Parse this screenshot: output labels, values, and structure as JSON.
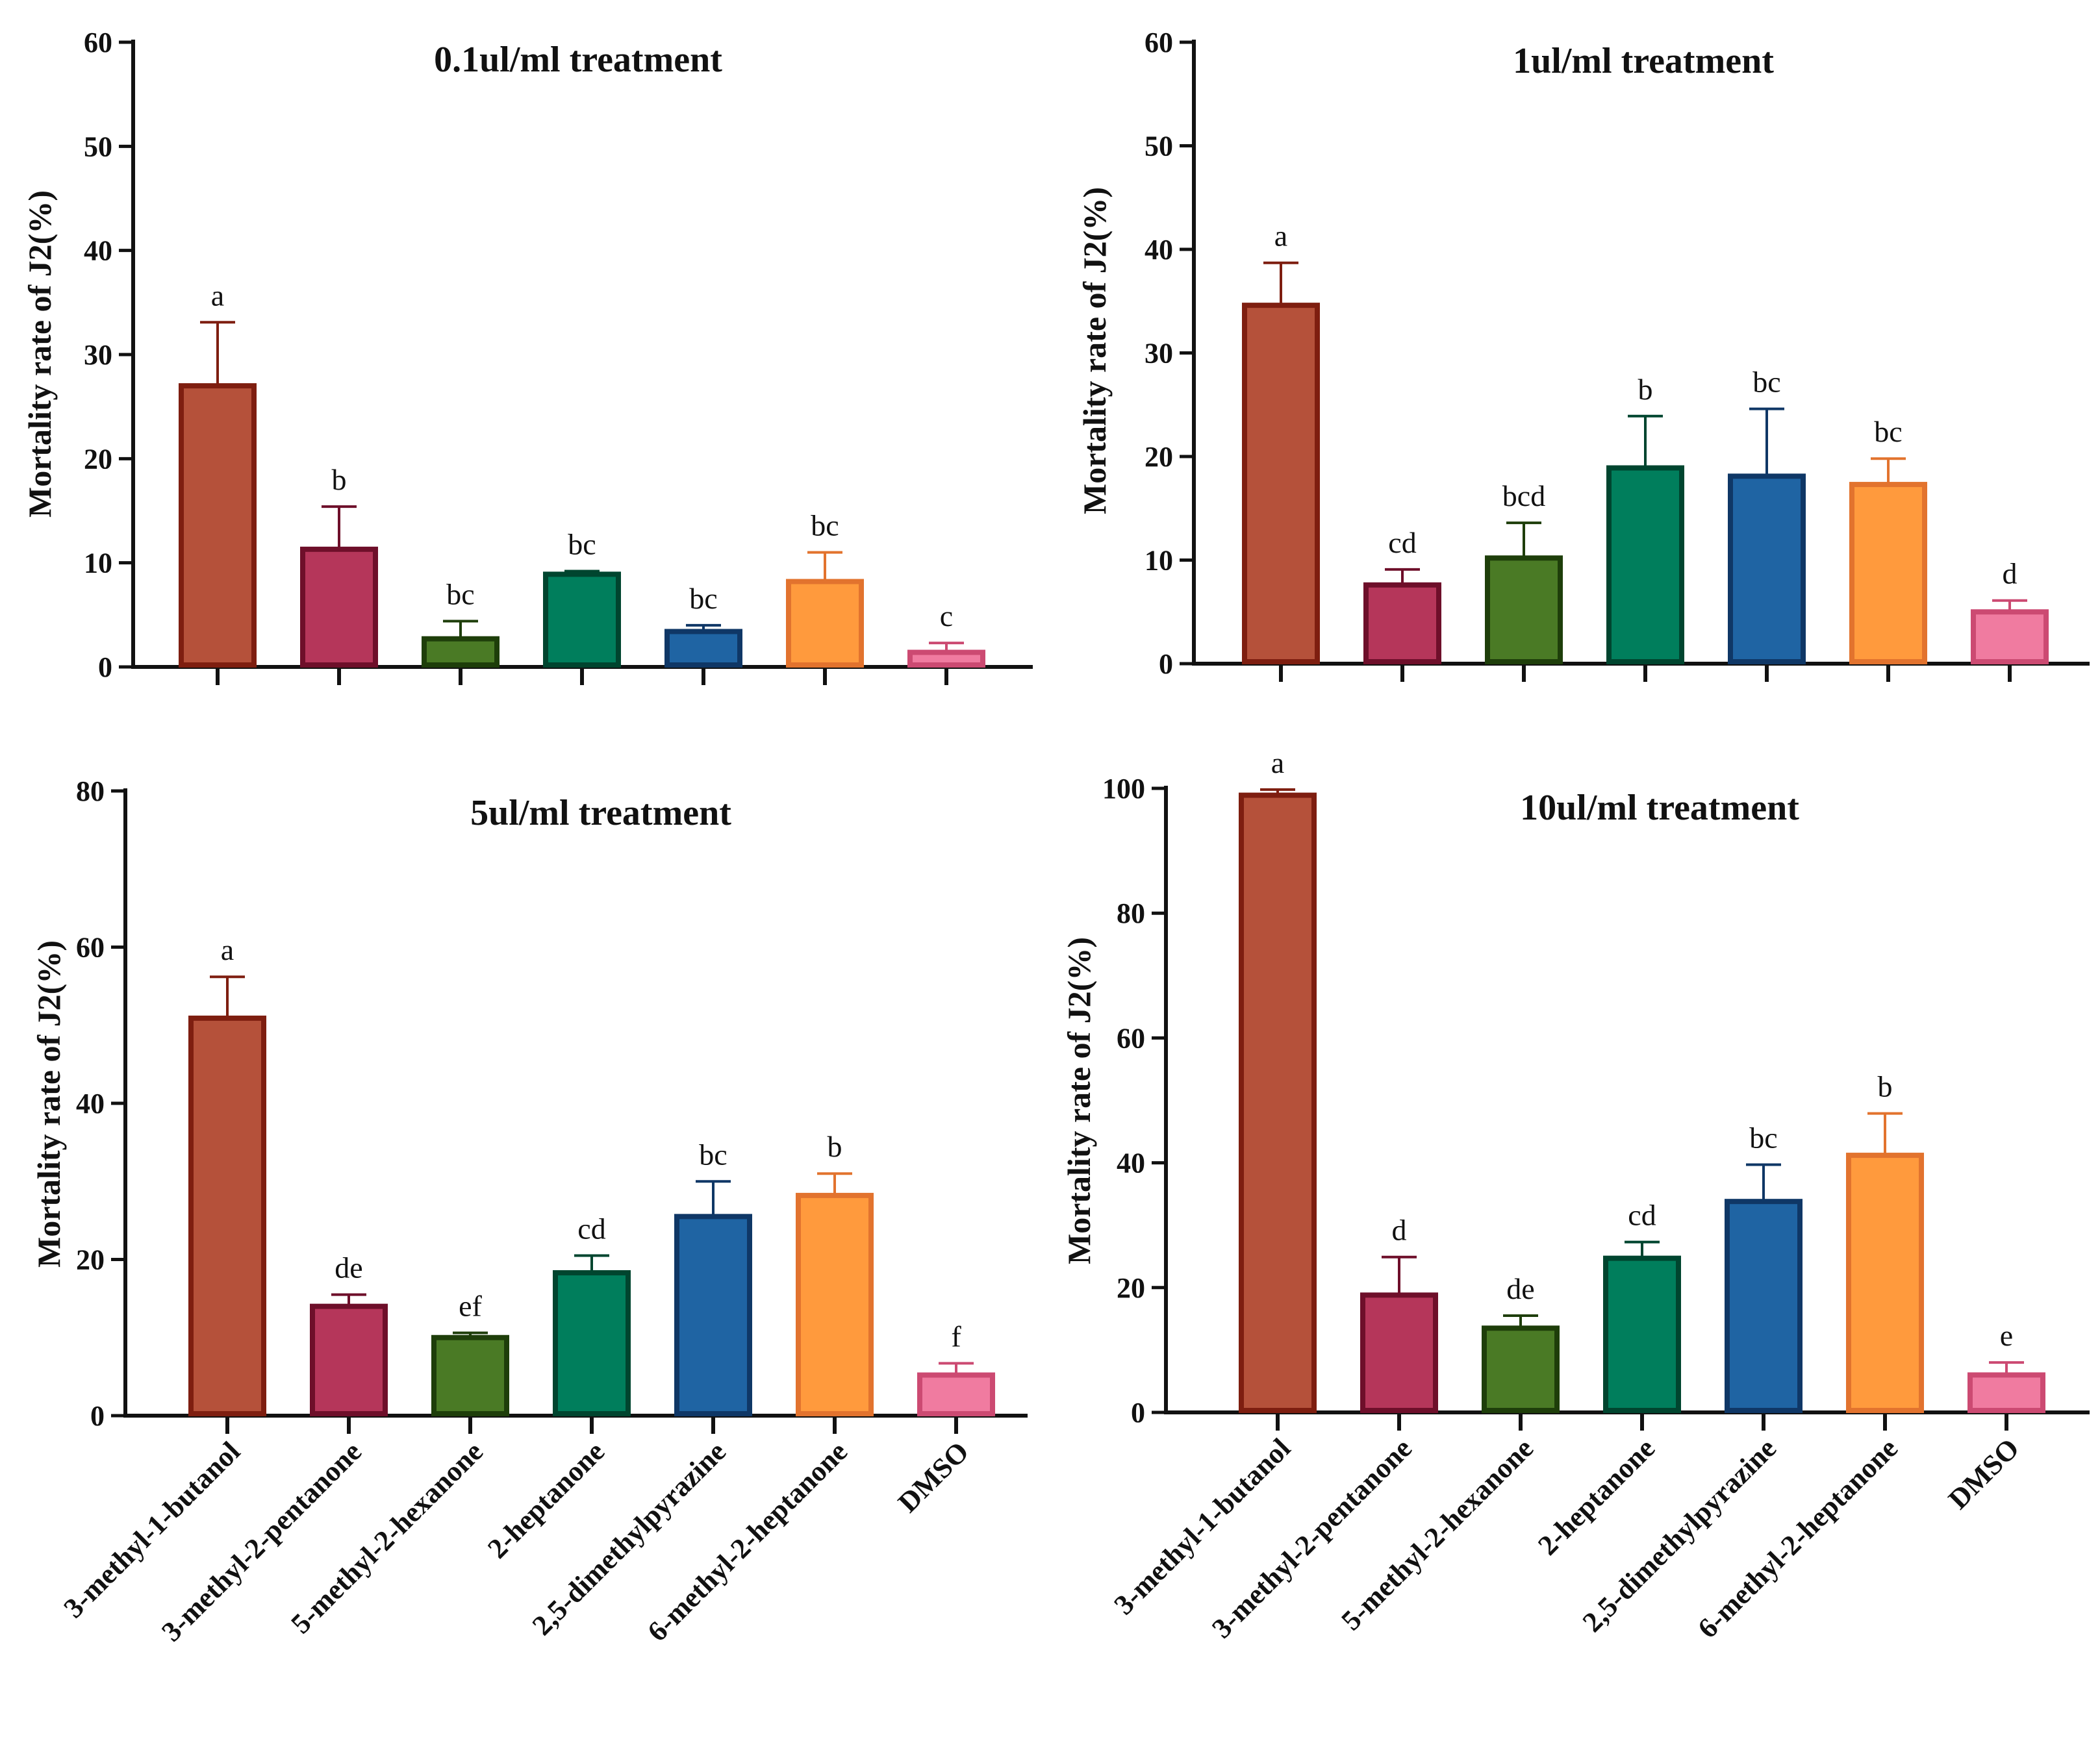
{
  "colors": {
    "3-methyl-1-butanol": {
      "fill": "#B5513A",
      "stroke": "#7E1E10"
    },
    "3-methyl-2-pentanone": {
      "fill": "#B5365A",
      "stroke": "#6E0F2A"
    },
    "5-methyl-2-hexanone": {
      "fill": "#4A7A25",
      "stroke": "#1E3E0A"
    },
    "2-heptanone": {
      "fill": "#007E5C",
      "stroke": "#00452F"
    },
    "2,5-dimethylpyrazine": {
      "fill": "#1F64A3",
      "stroke": "#0F3766"
    },
    "6-methyl-2-heptanone": {
      "fill": "#FF9A3D",
      "stroke": "#E2732E"
    },
    "DMSO": {
      "fill": "#F07BA0",
      "stroke": "#CC4A72"
    }
  },
  "chart_data": [
    {
      "type": "bar",
      "title": "0.1ul/ml treatment",
      "xlabel": "",
      "ylabel": "Mortality rate of J2(%)",
      "ylim": [
        0,
        60
      ],
      "yticks": [
        0,
        10,
        20,
        30,
        40,
        50,
        60
      ],
      "show_category_labels": false,
      "categories": [
        "3-methyl-1-butanol",
        "3-methyl-2-pentanone",
        "5-methyl-2-hexanone",
        "2-heptanone",
        "2,5-dimethylpyrazine",
        "6-methyl-2-heptanone",
        "DMSO"
      ],
      "values": [
        27,
        11.3,
        2.7,
        8.9,
        3.4,
        8.2,
        1.4
      ],
      "errors": [
        6.1,
        4.1,
        1.7,
        0.3,
        0.6,
        2.8,
        0.9
      ],
      "significance": [
        "a",
        "b",
        "bc",
        "bc",
        "bc",
        "bc",
        "c"
      ]
    },
    {
      "type": "bar",
      "title": "1ul/ml treatment",
      "xlabel": "",
      "ylabel": "Mortality rate of J2(%)",
      "ylim": [
        0,
        60
      ],
      "yticks": [
        0,
        10,
        20,
        30,
        40,
        50,
        60
      ],
      "show_category_labels": false,
      "categories": [
        "3-methyl-1-butanol",
        "3-methyl-2-pentanone",
        "5-methyl-2-hexanone",
        "2-heptanone",
        "2,5-dimethylpyrazine",
        "6-methyl-2-heptanone",
        "DMSO"
      ],
      "values": [
        34.6,
        7.6,
        10.2,
        18.9,
        18.1,
        17.3,
        5
      ],
      "errors": [
        4.1,
        1.5,
        3.4,
        5,
        6.5,
        2.5,
        1.1
      ],
      "significance": [
        "a",
        "cd",
        "bcd",
        "b",
        "bc",
        "bc",
        "d"
      ]
    },
    {
      "type": "bar",
      "title": "5ul/ml treatment",
      "xlabel": "",
      "ylabel": "Mortality rate of J2(%)",
      "ylim": [
        0,
        80
      ],
      "yticks": [
        0,
        20,
        40,
        60,
        80
      ],
      "show_category_labels": true,
      "categories": [
        "3-methyl-1-butanol",
        "3-methyl-2-pentanone",
        "5-methyl-2-hexanone",
        "2-heptanone",
        "2,5-dimethylpyrazine",
        "6-methyl-2-heptanone",
        "DMSO"
      ],
      "values": [
        50.9,
        14,
        10,
        18.3,
        25.5,
        28.2,
        5.2
      ],
      "errors": [
        5.3,
        1.5,
        0.6,
        2.2,
        4.5,
        2.8,
        1.5
      ],
      "significance": [
        "a",
        "de",
        "ef",
        "cd",
        "bc",
        "b",
        "f"
      ]
    },
    {
      "type": "bar",
      "title": "10ul/ml treatment",
      "xlabel": "",
      "ylabel": "Mortality rate of J2(%)",
      "ylim": [
        0,
        100
      ],
      "yticks": [
        0,
        20,
        40,
        60,
        80,
        100
      ],
      "show_category_labels": true,
      "categories": [
        "3-methyl-1-butanol",
        "3-methyl-2-pentanone",
        "5-methyl-2-hexanone",
        "2-heptanone",
        "2,5-dimethylpyrazine",
        "6-methyl-2-heptanone",
        "DMSO"
      ],
      "values": [
        98.9,
        18.8,
        13.5,
        24.7,
        33.8,
        41.2,
        6
      ],
      "errors": [
        0.9,
        6.1,
        2,
        2.6,
        5.9,
        6.7,
        2
      ],
      "significance": [
        "a",
        "d",
        "de",
        "cd",
        "bc",
        "b",
        "e"
      ]
    }
  ]
}
